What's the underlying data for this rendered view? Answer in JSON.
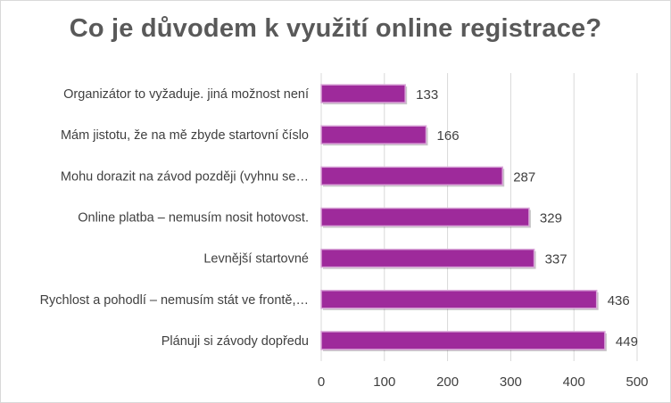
{
  "chart_data": {
    "type": "bar",
    "orientation": "horizontal",
    "title": "Co je důvodem k využití online registrace?",
    "categories": [
      "Organizátor to vyžaduje. jiná možnost není",
      "Mám jistotu, že na mě zbyde startovní číslo",
      "Mohu dorazit na závod později (vyhnu se…",
      "Online platba – nemusím nosit hotovost.",
      "Levnější startovné",
      "Rychlost a pohodlí – nemusím stát ve frontě,…",
      "Plánuji si závody dopředu"
    ],
    "values": [
      133,
      166,
      287,
      329,
      337,
      436,
      449
    ],
    "xlim": [
      0,
      500
    ],
    "xticks": [
      0,
      100,
      200,
      300,
      400,
      500
    ],
    "grid": "vertical",
    "legend": "none",
    "colors": {
      "bar": "#9e2a9b",
      "bar_edge": "#d9a6d8",
      "grid": "#d9d9d9",
      "text": "#404040",
      "title": "#595959"
    }
  }
}
